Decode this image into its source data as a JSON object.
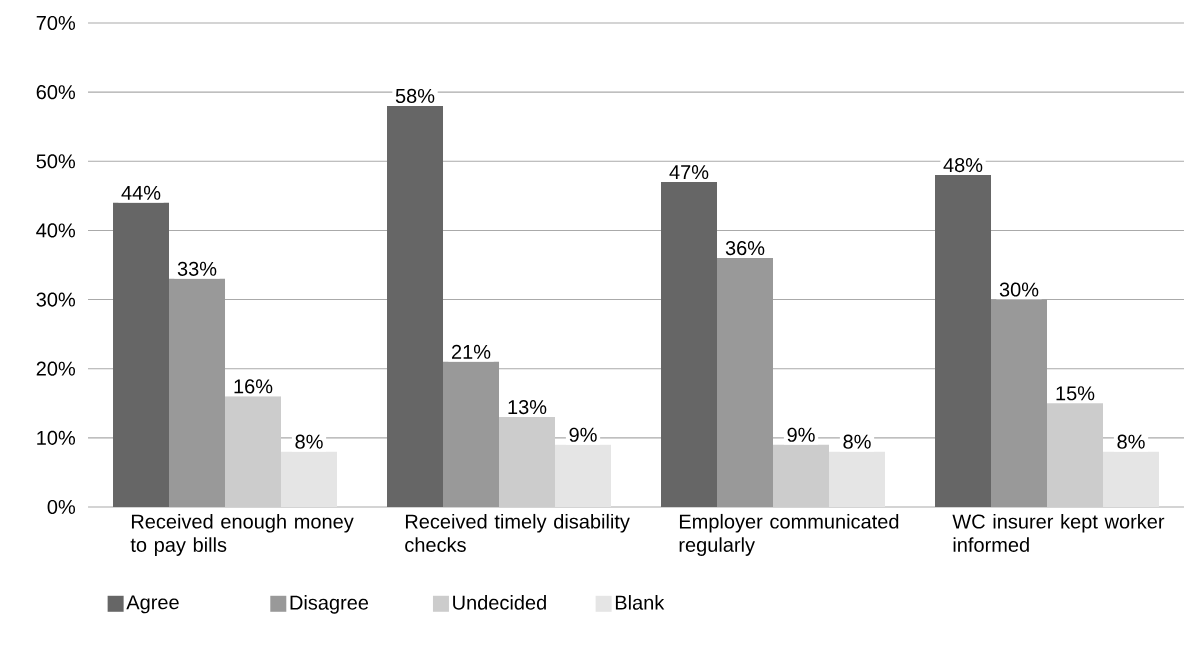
{
  "chart_data": {
    "type": "bar",
    "categories": [
      "Received enough money to pay bills",
      "Received timely disability checks",
      "Employer communicated regularly",
      "WC insurer kept worker informed"
    ],
    "series": [
      {
        "name": "Agree",
        "color": "#666666",
        "values": [
          44,
          58,
          47,
          48
        ],
        "value_labels": [
          "44%",
          "58%",
          "47%",
          "48%"
        ]
      },
      {
        "name": "Disagree",
        "color": "#999999",
        "values": [
          33,
          21,
          36,
          30
        ],
        "value_labels": [
          "33%",
          "21%",
          "36%",
          "30%"
        ]
      },
      {
        "name": "Undecided",
        "color": "#cccccc",
        "values": [
          16,
          13,
          9,
          15
        ],
        "value_labels": [
          "16%",
          "13%",
          "9%",
          "15%"
        ]
      },
      {
        "name": "Blank",
        "color": "#e5e5e5",
        "values": [
          8,
          9,
          8,
          8
        ],
        "value_labels": [
          "8%",
          "9%",
          "8%",
          "8%"
        ]
      }
    ],
    "ylim": [
      0,
      70
    ],
    "yticks": [
      {
        "value": 0,
        "label": "0%"
      },
      {
        "value": 10,
        "label": "10%"
      },
      {
        "value": 20,
        "label": "20%"
      },
      {
        "value": 30,
        "label": "30%"
      },
      {
        "value": 40,
        "label": "40%"
      },
      {
        "value": 50,
        "label": "50%"
      },
      {
        "value": 60,
        "label": "60%"
      },
      {
        "value": 70,
        "label": "70%"
      }
    ],
    "grid": "y",
    "legend": "bottom"
  }
}
